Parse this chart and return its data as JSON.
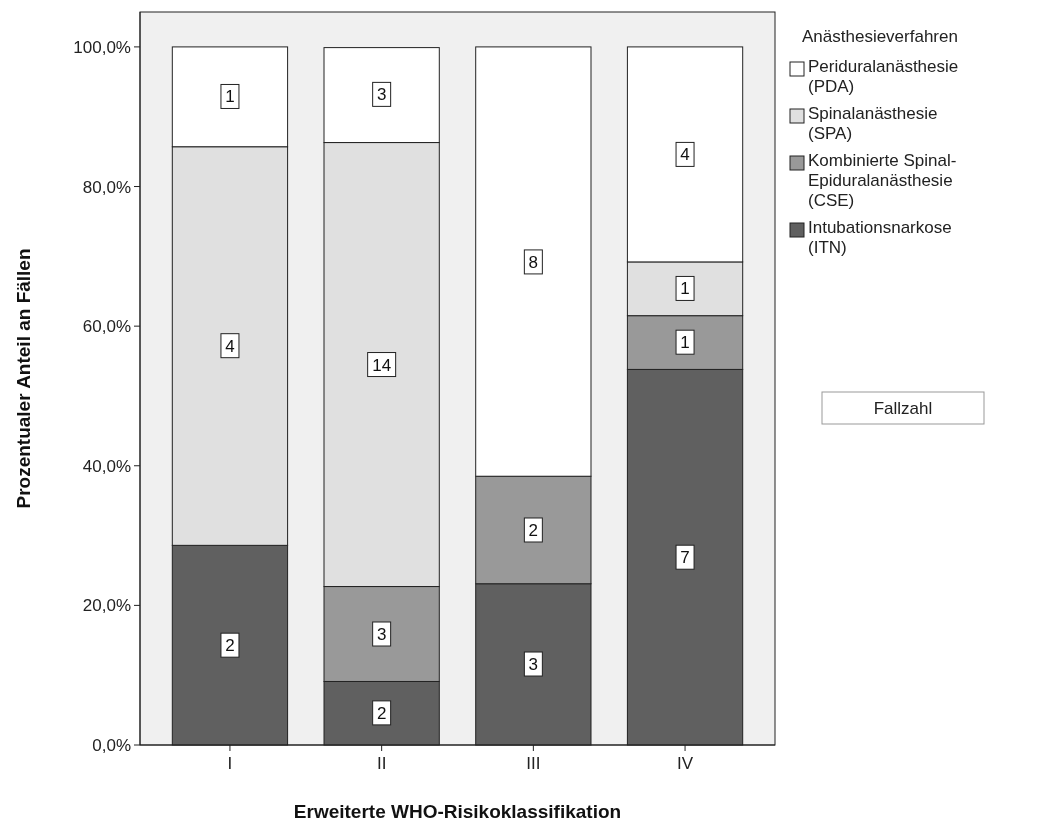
{
  "chart_data": {
    "type": "bar",
    "stacked": true,
    "xlabel": "Erweiterte WHO-Risikoklassifikation",
    "ylabel": "Prozentualer Anteil an Fällen",
    "legend_title": "Anästhesieverfahren",
    "legend": "right",
    "categories": [
      "I",
      "II",
      "III",
      "IV"
    ],
    "ylim": [
      0,
      105
    ],
    "yticks": [
      {
        "value": 0,
        "label": "0,0%"
      },
      {
        "value": 20,
        "label": "20,0%"
      },
      {
        "value": 40,
        "label": "40,0%"
      },
      {
        "value": 60,
        "label": "60,0%"
      },
      {
        "value": 80,
        "label": "80,0%"
      },
      {
        "value": 100,
        "label": "100,0%"
      }
    ],
    "series": [
      {
        "name": "Intubationsnarkose (ITN)",
        "color": "#606060",
        "values": [
          28.6,
          9.1,
          23.1,
          53.8
        ]
      },
      {
        "name": "Kombinierte Spinal-Epiduralanästhesie (CSE)",
        "color": "#999999",
        "values": [
          null,
          13.6,
          15.4,
          7.7
        ]
      },
      {
        "name": "Spinalanästhesie (SPA)",
        "color": "#e0e0e0",
        "values": [
          57.1,
          63.6,
          null,
          7.7
        ]
      },
      {
        "name": "Periduralanästhesie (PDA)",
        "color": "#ffffff",
        "values": [
          14.3,
          13.6,
          61.5,
          30.8
        ]
      }
    ],
    "annotations": [
      "Fallzahl",
      {
        "text": "2",
        "x": "I",
        "y": 14.3
      },
      {
        "text": "4",
        "x": "I",
        "y": 57.2
      },
      {
        "text": "1",
        "x": "I",
        "y": 92.9
      },
      {
        "text": "2",
        "x": "II",
        "y": 4.6
      },
      {
        "text": "3",
        "x": "II",
        "y": 15.9
      },
      {
        "text": "14",
        "x": "II",
        "y": 54.5
      },
      {
        "text": "3",
        "x": "II",
        "y": 93.2
      },
      {
        "text": "3",
        "x": "III",
        "y": 11.6
      },
      {
        "text": "2",
        "x": "III",
        "y": 30.8
      },
      {
        "text": "8",
        "x": "III",
        "y": 69.2
      },
      {
        "text": "7",
        "x": "IV",
        "y": 26.9
      },
      {
        "text": "1",
        "x": "IV",
        "y": 57.7
      },
      {
        "text": "1",
        "x": "IV",
        "y": 65.4
      },
      {
        "text": "4",
        "x": "IV",
        "y": 84.6
      }
    ]
  }
}
